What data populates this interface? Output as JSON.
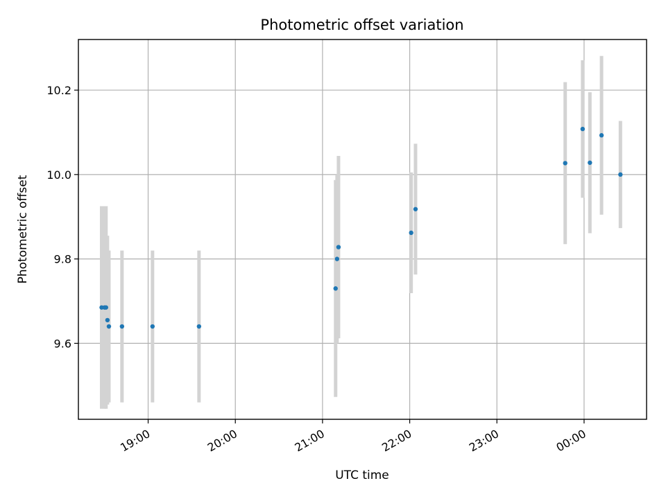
{
  "chart_data": {
    "type": "scatter",
    "title": "Photometric offset variation",
    "xlabel": "UTC time",
    "ylabel": "Photometric offset",
    "x_axis": {
      "kind": "time",
      "range": [
        "18:12",
        "00:43"
      ],
      "ticks": [
        "19:00",
        "20:00",
        "21:00",
        "22:00",
        "23:00",
        "00:00"
      ],
      "tick_rotation_deg": 30
    },
    "y_axis": {
      "range": [
        9.42,
        10.32
      ],
      "ticks": [
        9.6,
        9.8,
        10.0,
        10.2
      ],
      "tick_labels": [
        "9.6",
        "9.8",
        "10.0",
        "10.2"
      ]
    },
    "grid": true,
    "series": [
      {
        "marker_color": "#1f77b4",
        "errorbar_color": "#d3d3d3",
        "points": [
          {
            "t": "18:28",
            "y": 9.685,
            "err": 0.24
          },
          {
            "t": "18:30",
            "y": 9.685,
            "err": 0.24
          },
          {
            "t": "18:31",
            "y": 9.685,
            "err": 0.24
          },
          {
            "t": "18:32",
            "y": 9.655,
            "err": 0.2
          },
          {
            "t": "18:33",
            "y": 9.64,
            "err": 0.18
          },
          {
            "t": "18:42",
            "y": 9.64,
            "err": 0.18
          },
          {
            "t": "19:03",
            "y": 9.64,
            "err": 0.18
          },
          {
            "t": "19:35",
            "y": 9.64,
            "err": 0.18
          },
          {
            "t": "21:09",
            "y": 9.73,
            "err": 0.257
          },
          {
            "t": "21:10",
            "y": 9.8,
            "err": 0.2
          },
          {
            "t": "21:11",
            "y": 9.828,
            "err": 0.216
          },
          {
            "t": "22:01",
            "y": 9.862,
            "err": 0.143
          },
          {
            "t": "22:04",
            "y": 9.918,
            "err": 0.155
          },
          {
            "t": "23:47",
            "y": 10.027,
            "err": 0.192
          },
          {
            "t": "23:59",
            "y": 10.108,
            "err": 0.163
          },
          {
            "t": "00:04",
            "y": 10.028,
            "err": 0.167
          },
          {
            "t": "00:12",
            "y": 10.093,
            "err": 0.188
          },
          {
            "t": "00:25",
            "y": 10.0,
            "err": 0.127
          }
        ]
      }
    ]
  }
}
